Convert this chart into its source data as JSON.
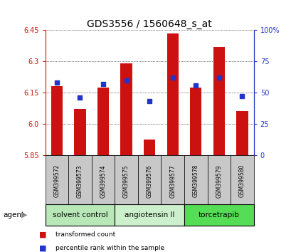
{
  "title": "GDS3556 / 1560648_s_at",
  "samples": [
    "GSM399572",
    "GSM399573",
    "GSM399574",
    "GSM399575",
    "GSM399576",
    "GSM399577",
    "GSM399578",
    "GSM399579",
    "GSM399580"
  ],
  "bar_values": [
    6.18,
    6.07,
    6.175,
    6.29,
    5.925,
    6.435,
    6.175,
    6.37,
    6.06
  ],
  "percentile_values": [
    58,
    46,
    57,
    60,
    43,
    62,
    56,
    62,
    47
  ],
  "y_min": 5.85,
  "y_max": 6.45,
  "y_ticks": [
    5.85,
    6.0,
    6.15,
    6.3,
    6.45
  ],
  "y_right_ticks": [
    0,
    25,
    50,
    75,
    100
  ],
  "bar_color": "#cc1111",
  "dot_color": "#2233cc",
  "groups": [
    {
      "label": "solvent control",
      "start": 0,
      "end": 3,
      "color": "#b8e8b8"
    },
    {
      "label": "angiotensin II",
      "start": 3,
      "end": 6,
      "color": "#ccf0cc"
    },
    {
      "label": "torcetrapib",
      "start": 6,
      "end": 9,
      "color": "#55dd55"
    }
  ],
  "agent_label": "agent",
  "legend_bar_label": "transformed count",
  "legend_dot_label": "percentile rank within the sample",
  "title_fontsize": 10,
  "tick_label_fontsize": 7,
  "group_label_fontsize": 7.5,
  "background_plot": "#ffffff",
  "background_sample": "#c8c8c8",
  "dot_size": 16
}
